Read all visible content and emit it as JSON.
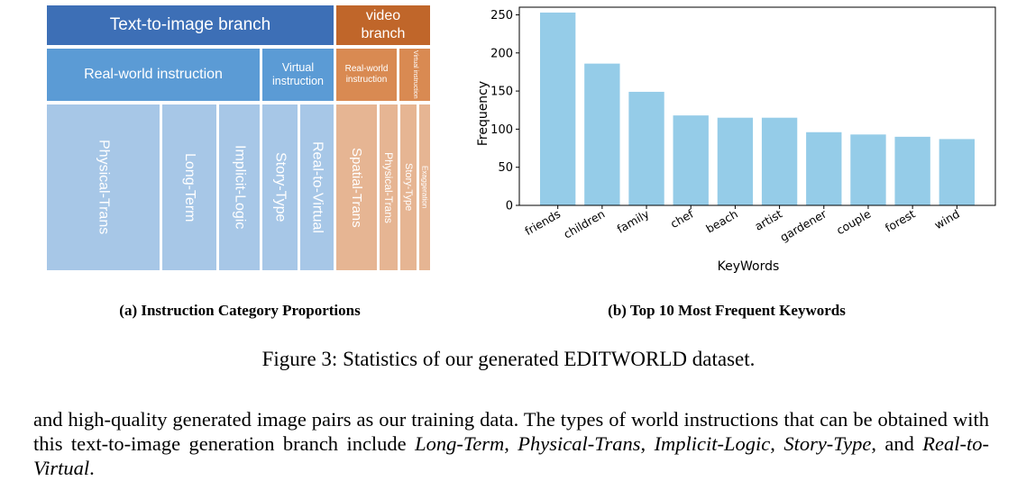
{
  "treemap": {
    "t2i_branch": "Text-to-image branch",
    "video_branch": "video branch",
    "real_world_t2i": "Real-world instruction",
    "virtual_t2i": "Virtual instruction",
    "real_world_video": "Real-world instruction",
    "virtual_video": "Virtual instruction",
    "cells": {
      "physical_trans": "Physical-Trans",
      "long_term": "Long-Term",
      "implicit_logic": "Implicit-Logic",
      "story_type": "Story-Type",
      "real_to_virtual": "Real-to-Virtual",
      "spatial_trans": "Spatial-Trans",
      "physical_trans_v": "Physical-Trans",
      "story_type_v": "Story-Type",
      "exaggeration": "Exaggeration"
    },
    "colors": {
      "branch_t2i": "#3d6fb6",
      "branch_video": "#c0662a",
      "instr_t2i": "#5b9bd5",
      "instr_video": "#d98a52",
      "cell_t2i": "#a7c7e7",
      "cell_video": "#e6b593"
    }
  },
  "caption_a": "(a) Instruction Category Proportions",
  "caption_b": "(b) Top 10 Most Frequent Keywords",
  "figure_caption": {
    "prefix": "Figure 3: Statistics of our generated ",
    "name": "EDITWORLD",
    "suffix": " dataset."
  },
  "chart_data": {
    "type": "bar",
    "categories": [
      "friends",
      "children",
      "family",
      "chef",
      "beach",
      "artist",
      "gardener",
      "couple",
      "forest",
      "wind"
    ],
    "values": [
      253,
      186,
      149,
      118,
      115,
      115,
      96,
      93,
      90,
      87
    ],
    "xlabel": "KeyWords",
    "ylabel": "Frequency",
    "ylim": [
      0,
      260
    ],
    "yticks": [
      0,
      50,
      100,
      150,
      200,
      250
    ],
    "bar_color": "#95cce8"
  },
  "paragraph": {
    "t1": "and high-quality generated image pairs as our training data. The types of world instructions that can be obtained with this text-to-image generation branch include ",
    "i1": "Long-Term",
    "t2": ", ",
    "i2": "Physical-Trans",
    "t3": ", ",
    "i3": "Implicit-Logic",
    "t4": ", ",
    "i4": "Story-Type",
    "t5": ", and ",
    "i5": "Real-to-Virtual",
    "t6": "."
  }
}
